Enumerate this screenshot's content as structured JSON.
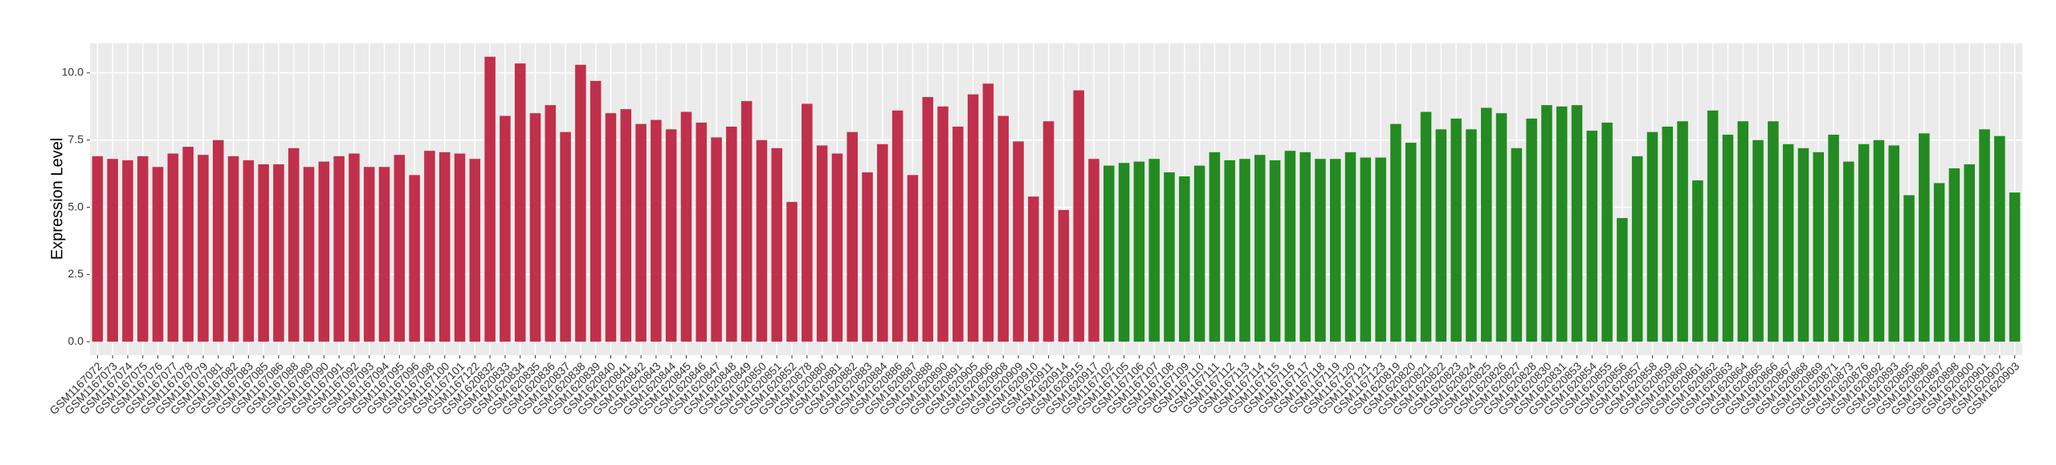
{
  "chart_data": {
    "type": "bar",
    "y_label": "Expression Level",
    "ylim": [
      -0.5,
      11.1
    ],
    "yticks": [
      {
        "value": 0,
        "label": "0.0"
      },
      {
        "value": 2.5,
        "label": "2.5"
      },
      {
        "value": 5,
        "label": "5.0"
      },
      {
        "value": 7.5,
        "label": "7.5"
      },
      {
        "value": 10,
        "label": "10.0"
      }
    ],
    "grid": true,
    "series": [
      {
        "color": "#c0304a",
        "categories": [
          "GSM1167072",
          "GSM1167073",
          "GSM1167074",
          "GSM1167075",
          "GSM1167076",
          "GSM1167077",
          "GSM1167078",
          "GSM1167079",
          "GSM1167081",
          "GSM1167082",
          "GSM1167083",
          "GSM1167085",
          "GSM1167086",
          "GSM1167088",
          "GSM1167089",
          "GSM1167090",
          "GSM1167091",
          "GSM1167092",
          "GSM1167093",
          "GSM1167094",
          "GSM1167095",
          "GSM1167096",
          "GSM1167098",
          "GSM1167100",
          "GSM1167101",
          "GSM1167122",
          "GSM1620832",
          "GSM1620833",
          "GSM1620834",
          "GSM1620835",
          "GSM1620836",
          "GSM1620837",
          "GSM1620838",
          "GSM1620839",
          "GSM1620840",
          "GSM1620841",
          "GSM1620842",
          "GSM1620843",
          "GSM1620844",
          "GSM1620845",
          "GSM1620846",
          "GSM1620847",
          "GSM1620848",
          "GSM1620849",
          "GSM1620850",
          "GSM1620851",
          "GSM1620852",
          "GSM1620878",
          "GSM1620880",
          "GSM1620881",
          "GSM1620882",
          "GSM1620883",
          "GSM1620884",
          "GSM1620886",
          "GSM1620887",
          "GSM1620888",
          "GSM1620890",
          "GSM1620891",
          "GSM1620905",
          "GSM1620906",
          "GSM1620908",
          "GSM1620909",
          "GSM1620910",
          "GSM1620911",
          "GSM1620914",
          "GSM1620915",
          "GSM1620917"
        ],
        "values": [
          6.9,
          6.8,
          6.75,
          6.9,
          6.5,
          7.0,
          7.25,
          6.95,
          7.5,
          6.9,
          6.75,
          6.6,
          6.6,
          7.2,
          6.5,
          6.7,
          6.9,
          7.0,
          6.5,
          6.5,
          6.95,
          6.2,
          7.1,
          7.05,
          7.0,
          6.8,
          10.6,
          8.4,
          10.35,
          8.5,
          8.8,
          7.8,
          10.3,
          9.7,
          8.5,
          8.65,
          8.1,
          8.25,
          7.9,
          8.55,
          8.15,
          7.6,
          8.0,
          8.95,
          7.5,
          7.2,
          5.2,
          8.85,
          7.3,
          7.0,
          7.8,
          6.3,
          7.35,
          8.6,
          6.2,
          9.1,
          8.75,
          8.0,
          9.2,
          9.6,
          8.4,
          7.45,
          5.4,
          8.2,
          4.9,
          9.35,
          6.8
        ]
      },
      {
        "color": "#238b21",
        "categories": [
          "GSM1167102",
          "GSM1167105",
          "GSM1167106",
          "GSM1167107",
          "GSM1167108",
          "GSM1167109",
          "GSM1167110",
          "GSM1167111",
          "GSM1167112",
          "GSM1167113",
          "GSM1167114",
          "GSM1167115",
          "GSM1167116",
          "GSM1167117",
          "GSM1167118",
          "GSM1167119",
          "GSM1167120",
          "GSM1167121",
          "GSM1167123",
          "GSM1620819",
          "GSM1620820",
          "GSM1620821",
          "GSM1620822",
          "GSM1620823",
          "GSM1620824",
          "GSM1620825",
          "GSM1620826",
          "GSM1620827",
          "GSM1620828",
          "GSM1620830",
          "GSM1620831",
          "GSM1620853",
          "GSM1620854",
          "GSM1620855",
          "GSM1620856",
          "GSM1620857",
          "GSM1620858",
          "GSM1620859",
          "GSM1620860",
          "GSM1620861",
          "GSM1620862",
          "GSM1620863",
          "GSM1620864",
          "GSM1620865",
          "GSM1620866",
          "GSM1620867",
          "GSM1620868",
          "GSM1620869",
          "GSM1620871",
          "GSM1620873",
          "GSM1620876",
          "GSM1620892",
          "GSM1620893",
          "GSM1620895",
          "GSM1620896",
          "GSM1620897",
          "GSM1620898",
          "GSM1620900",
          "GSM1620901",
          "GSM1620902",
          "GSM1620903"
        ],
        "values": [
          6.55,
          6.65,
          6.7,
          6.8,
          6.3,
          6.15,
          6.55,
          7.05,
          6.75,
          6.8,
          6.95,
          6.75,
          7.1,
          7.05,
          6.8,
          6.8,
          7.05,
          6.85,
          6.85,
          8.1,
          7.4,
          8.55,
          7.9,
          8.3,
          7.9,
          8.7,
          8.5,
          7.2,
          8.3,
          8.8,
          8.75,
          8.8,
          7.85,
          8.15,
          4.6,
          6.9,
          7.8,
          8.0,
          8.2,
          6.0,
          8.6,
          7.7,
          8.2,
          7.5,
          8.2,
          7.35,
          7.2,
          7.05,
          7.7,
          6.7,
          7.35,
          7.5,
          7.3,
          5.45,
          7.75,
          5.9,
          6.45,
          6.6,
          7.9,
          7.65,
          5.55
        ]
      }
    ]
  }
}
